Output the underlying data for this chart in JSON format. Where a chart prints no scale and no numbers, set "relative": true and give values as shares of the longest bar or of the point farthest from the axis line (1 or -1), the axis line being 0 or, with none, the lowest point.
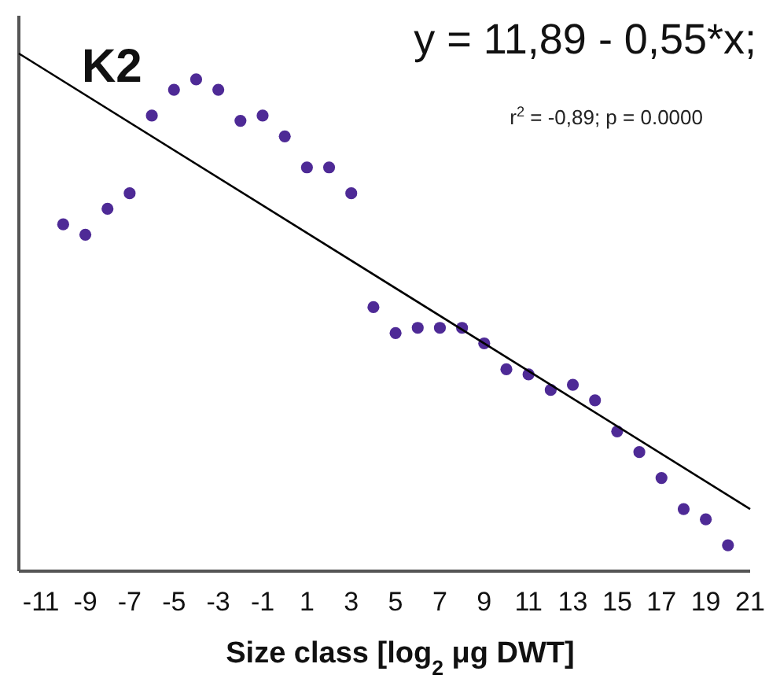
{
  "chart_data": {
    "type": "scatter",
    "title": "K2",
    "xlabel": "Size class [log$_{2}$ μg DWT]",
    "relative": true,
    "annotations": [
      "y = 11,89 - 0,55*x;",
      "r$^{2}$ = -0,89; p = 0.0000"
    ],
    "xlim": [
      -12,
      21
    ],
    "xticks": [
      -11,
      -9,
      -7,
      -5,
      -3,
      -1,
      1,
      3,
      5,
      7,
      9,
      11,
      13,
      15,
      17,
      19,
      21
    ],
    "series": [
      {
        "marker": "circle",
        "color": "#4e2a96",
        "x": [
          -10,
          -9,
          -8,
          -7,
          -6,
          -5,
          -4,
          -3,
          -2,
          -1,
          0,
          1,
          2,
          3,
          4,
          5,
          6,
          7,
          8,
          9,
          10,
          11,
          12,
          13,
          14,
          15,
          16,
          17,
          18,
          19,
          20
        ],
        "values": [
          0.67,
          0.65,
          0.7,
          0.73,
          0.88,
          0.93,
          0.95,
          0.93,
          0.87,
          0.88,
          0.84,
          0.78,
          0.78,
          0.73,
          0.51,
          0.46,
          0.47,
          0.47,
          0.47,
          0.44,
          0.39,
          0.38,
          0.35,
          0.36,
          0.33,
          0.27,
          0.23,
          0.18,
          0.12,
          0.1,
          0.05
        ]
      },
      {
        "type": "line",
        "color": "#000000",
        "x": [
          -12,
          21
        ],
        "values": [
          1.0,
          0.12
        ]
      }
    ]
  }
}
